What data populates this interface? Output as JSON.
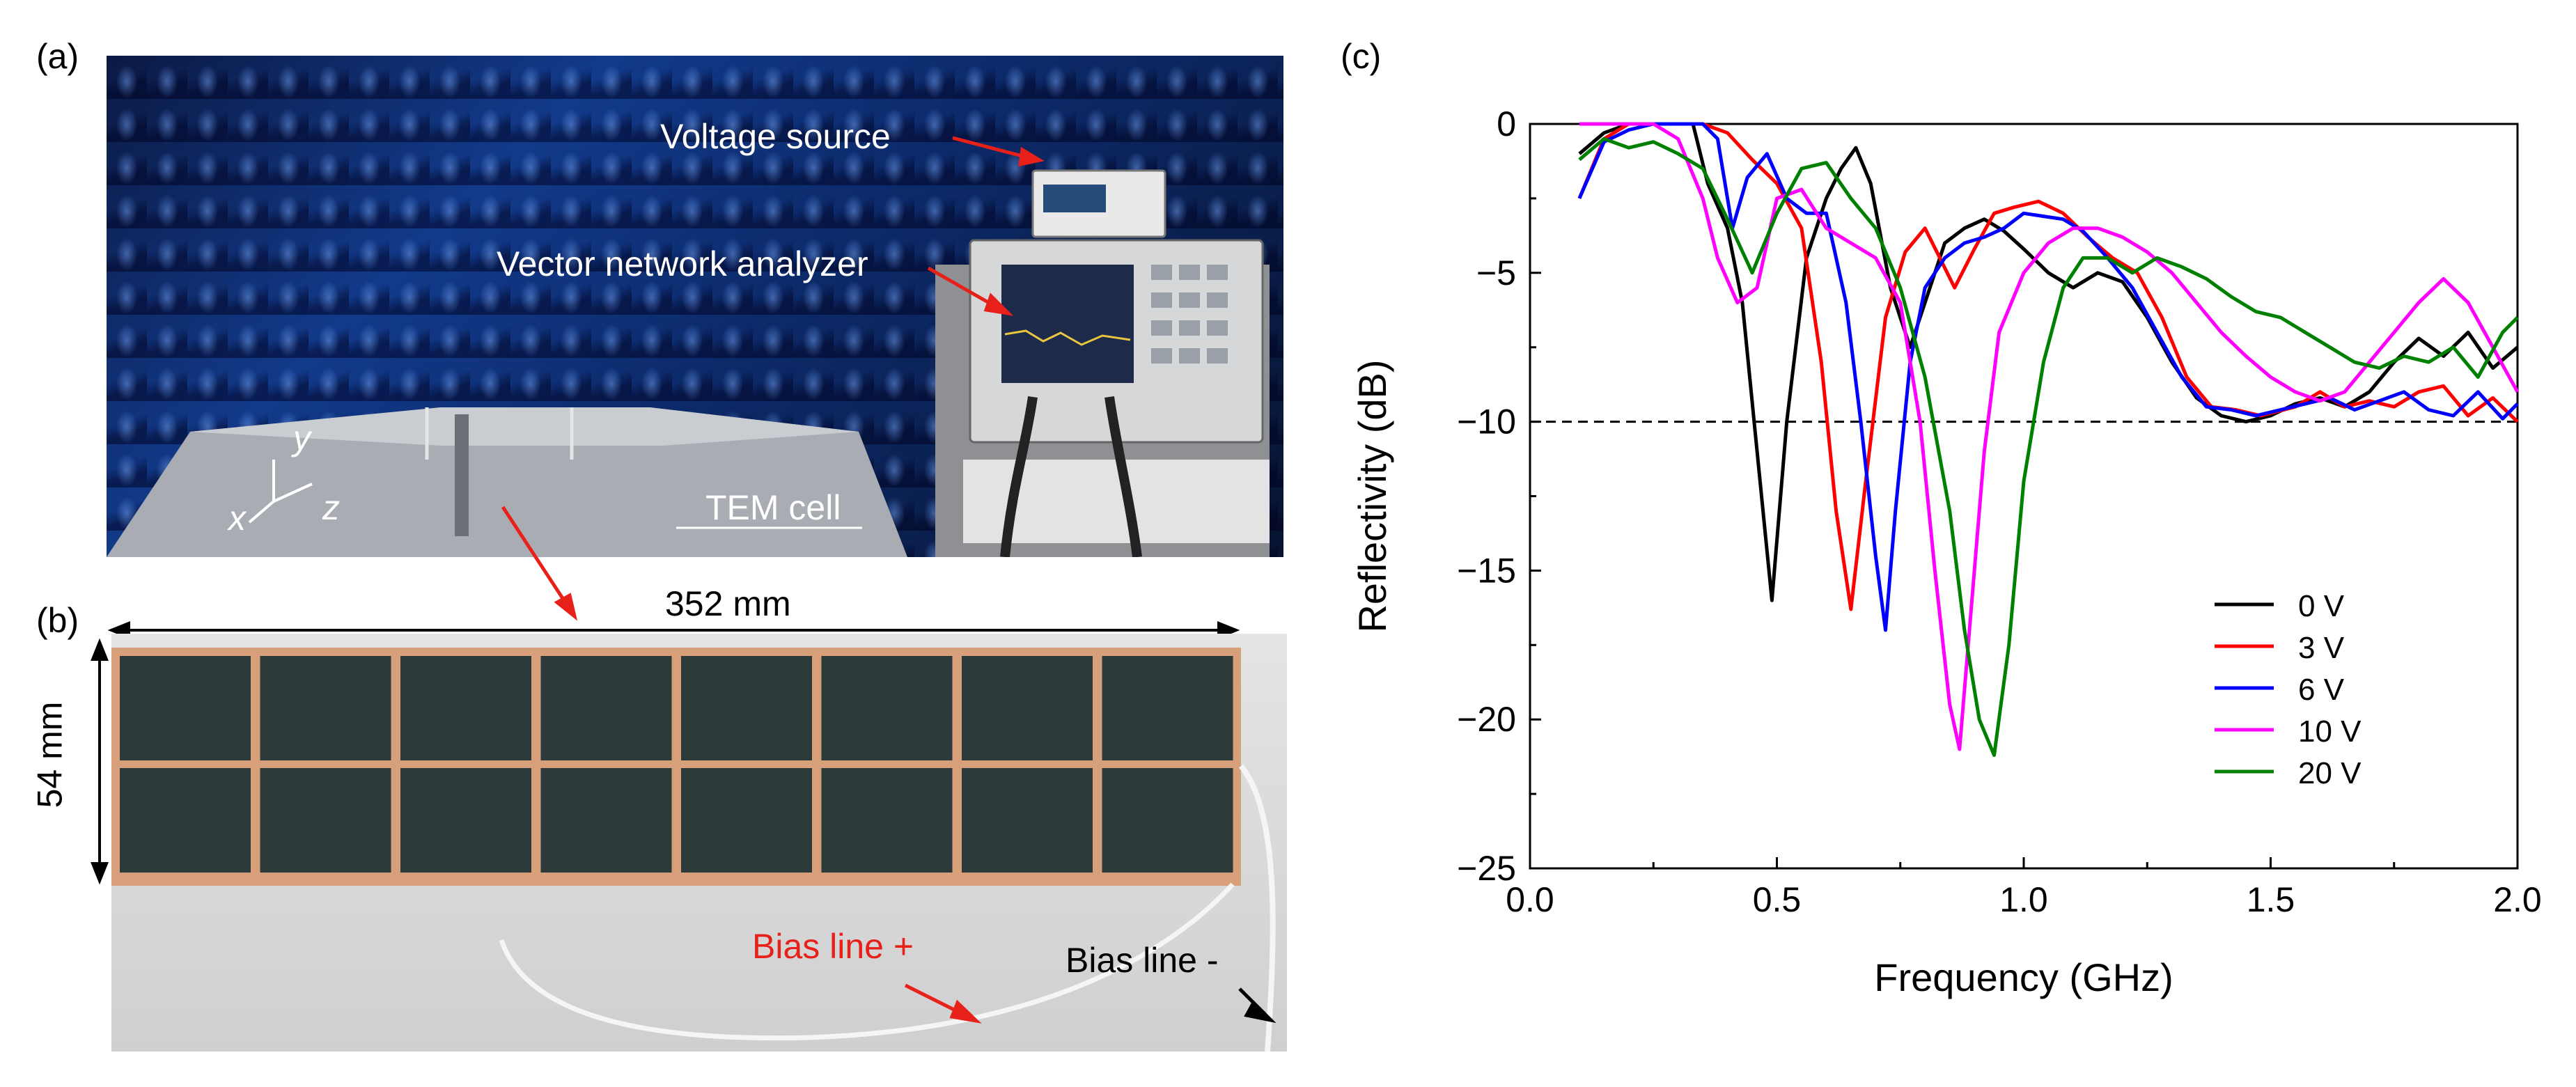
{
  "panels": {
    "a": {
      "label": "(a)",
      "annotations": {
        "voltage_source": "Voltage source",
        "vna": "Vector network analyzer",
        "tem_cell": "TEM cell",
        "axis_y": "y",
        "axis_x": "x",
        "axis_z": "z"
      }
    },
    "b": {
      "label": "(b)",
      "width_dim": "352 mm",
      "height_dim": "54 mm",
      "bias_plus": "Bias line +",
      "bias_minus": "Bias line -"
    },
    "c": {
      "label": "(c)"
    }
  },
  "colors": {
    "series": [
      "#000000",
      "#ff0000",
      "#0000ff",
      "#ff00ff",
      "#008000"
    ],
    "arrow_red": "#e8201a",
    "bias_plus_text": "#e8201a",
    "copper": "#d8a07a",
    "tile": "#2c3a3a"
  },
  "chart_data": {
    "type": "line",
    "xlabel": "Frequency (GHz)",
    "ylabel": "Reflectivity (dB)",
    "xlim": [
      0.0,
      2.0
    ],
    "ylim": [
      -25,
      0
    ],
    "xticks": [
      0.0,
      0.5,
      1.0,
      1.5,
      2.0
    ],
    "xtick_labels": [
      "0.0",
      "0.5",
      "1.0",
      "1.5",
      "2.0"
    ],
    "yticks": [
      0,
      -5,
      -10,
      -15,
      -20,
      -25
    ],
    "ytick_labels": [
      "0",
      "−5",
      "−10",
      "−15",
      "−20",
      "−25"
    ],
    "grid": false,
    "legend_position": "bottom-right",
    "reference_line": {
      "y": -10,
      "style": "dashed"
    },
    "series": [
      {
        "name": "0 V",
        "x": [
          0.1,
          0.15,
          0.2,
          0.25,
          0.3,
          0.33,
          0.36,
          0.4,
          0.43,
          0.46,
          0.49,
          0.52,
          0.56,
          0.6,
          0.63,
          0.66,
          0.69,
          0.73,
          0.77,
          0.8,
          0.84,
          0.88,
          0.92,
          0.96,
          1.0,
          1.05,
          1.1,
          1.15,
          1.2,
          1.25,
          1.3,
          1.35,
          1.4,
          1.45,
          1.5,
          1.55,
          1.6,
          1.65,
          1.7,
          1.75,
          1.8,
          1.85,
          1.9,
          1.95,
          2.0
        ],
        "y": [
          -1.0,
          -0.3,
          0.0,
          0.0,
          0.0,
          0.0,
          -2.0,
          -3.5,
          -6.0,
          -11.0,
          -16.0,
          -10.0,
          -4.5,
          -2.5,
          -1.5,
          -0.8,
          -2.0,
          -5.5,
          -7.5,
          -6.0,
          -4.0,
          -3.5,
          -3.2,
          -3.6,
          -4.2,
          -5.0,
          -5.5,
          -5.0,
          -5.3,
          -6.5,
          -8.0,
          -9.2,
          -9.8,
          -10.0,
          -9.8,
          -9.4,
          -9.2,
          -9.5,
          -9.0,
          -8.0,
          -7.2,
          -7.8,
          -7.0,
          -8.2,
          -7.5
        ]
      },
      {
        "name": "3 V",
        "x": [
          0.1,
          0.15,
          0.2,
          0.25,
          0.3,
          0.35,
          0.4,
          0.45,
          0.5,
          0.55,
          0.59,
          0.62,
          0.65,
          0.68,
          0.72,
          0.76,
          0.8,
          0.83,
          0.86,
          0.9,
          0.94,
          0.98,
          1.03,
          1.08,
          1.13,
          1.18,
          1.23,
          1.28,
          1.33,
          1.38,
          1.43,
          1.48,
          1.55,
          1.6,
          1.65,
          1.7,
          1.75,
          1.8,
          1.85,
          1.9,
          1.95,
          2.0
        ],
        "y": [
          -2.5,
          -0.5,
          0.0,
          0.0,
          0.0,
          0.0,
          -0.3,
          -1.2,
          -2.0,
          -3.5,
          -8.0,
          -13.0,
          -16.3,
          -12.0,
          -6.5,
          -4.3,
          -3.5,
          -4.5,
          -5.5,
          -4.2,
          -3.0,
          -2.8,
          -2.6,
          -3.0,
          -3.8,
          -4.5,
          -5.0,
          -6.5,
          -8.5,
          -9.5,
          -9.6,
          -9.8,
          -9.5,
          -9.0,
          -9.5,
          -9.3,
          -9.5,
          -9.0,
          -8.8,
          -9.8,
          -9.2,
          -10.0
        ]
      },
      {
        "name": "6 V",
        "x": [
          0.1,
          0.15,
          0.2,
          0.25,
          0.3,
          0.35,
          0.38,
          0.41,
          0.44,
          0.48,
          0.52,
          0.56,
          0.6,
          0.64,
          0.67,
          0.7,
          0.72,
          0.74,
          0.77,
          0.8,
          0.84,
          0.88,
          0.92,
          0.96,
          1.0,
          1.04,
          1.08,
          1.12,
          1.17,
          1.22,
          1.27,
          1.32,
          1.37,
          1.42,
          1.47,
          1.52,
          1.57,
          1.62,
          1.67,
          1.72,
          1.77,
          1.82,
          1.87,
          1.92,
          1.97,
          2.0
        ],
        "y": [
          -2.5,
          -0.6,
          -0.2,
          0.0,
          0.0,
          0.0,
          -0.5,
          -3.5,
          -1.8,
          -1.0,
          -2.5,
          -3.0,
          -3.0,
          -6.0,
          -10.0,
          -14.5,
          -17.0,
          -13.0,
          -8.0,
          -5.5,
          -4.5,
          -4.0,
          -3.8,
          -3.5,
          -3.0,
          -3.1,
          -3.2,
          -3.6,
          -4.5,
          -5.5,
          -7.0,
          -8.5,
          -9.5,
          -9.6,
          -9.8,
          -9.6,
          -9.4,
          -9.2,
          -9.6,
          -9.3,
          -9.0,
          -9.6,
          -9.8,
          -9.0,
          -9.9,
          -9.4
        ]
      },
      {
        "name": "10 V",
        "x": [
          0.1,
          0.15,
          0.2,
          0.25,
          0.3,
          0.35,
          0.38,
          0.42,
          0.46,
          0.5,
          0.55,
          0.6,
          0.65,
          0.7,
          0.75,
          0.79,
          0.82,
          0.85,
          0.87,
          0.89,
          0.92,
          0.95,
          1.0,
          1.05,
          1.1,
          1.15,
          1.2,
          1.25,
          1.3,
          1.35,
          1.4,
          1.45,
          1.5,
          1.55,
          1.6,
          1.65,
          1.7,
          1.75,
          1.8,
          1.85,
          1.9,
          1.95,
          2.0
        ],
        "y": [
          0.0,
          0.0,
          0.0,
          0.0,
          -0.5,
          -2.5,
          -4.5,
          -6.0,
          -5.5,
          -2.5,
          -2.2,
          -3.5,
          -4.0,
          -4.5,
          -6.0,
          -10.0,
          -15.0,
          -19.5,
          -21.0,
          -17.0,
          -11.0,
          -7.0,
          -5.0,
          -4.0,
          -3.5,
          -3.5,
          -3.8,
          -4.3,
          -5.0,
          -6.0,
          -7.0,
          -7.8,
          -8.5,
          -9.0,
          -9.3,
          -9.0,
          -8.0,
          -7.0,
          -6.0,
          -5.2,
          -6.0,
          -7.5,
          -9.0
        ]
      },
      {
        "name": "20 V",
        "x": [
          0.1,
          0.15,
          0.2,
          0.25,
          0.3,
          0.35,
          0.4,
          0.45,
          0.5,
          0.55,
          0.6,
          0.65,
          0.7,
          0.75,
          0.8,
          0.85,
          0.88,
          0.91,
          0.94,
          0.97,
          1.0,
          1.04,
          1.08,
          1.12,
          1.17,
          1.22,
          1.27,
          1.32,
          1.37,
          1.42,
          1.47,
          1.52,
          1.57,
          1.62,
          1.67,
          1.72,
          1.77,
          1.82,
          1.87,
          1.92,
          1.97,
          2.0
        ],
        "y": [
          -1.2,
          -0.5,
          -0.8,
          -0.6,
          -1.0,
          -1.5,
          -3.2,
          -5.0,
          -3.0,
          -1.5,
          -1.3,
          -2.5,
          -3.5,
          -5.5,
          -8.5,
          -13.0,
          -17.0,
          -20.0,
          -21.2,
          -17.5,
          -12.0,
          -8.0,
          -5.5,
          -4.5,
          -4.5,
          -5.0,
          -4.5,
          -4.8,
          -5.2,
          -5.8,
          -6.3,
          -6.5,
          -7.0,
          -7.5,
          -8.0,
          -8.2,
          -7.8,
          -8.0,
          -7.5,
          -8.5,
          -7.0,
          -6.5
        ]
      }
    ]
  }
}
